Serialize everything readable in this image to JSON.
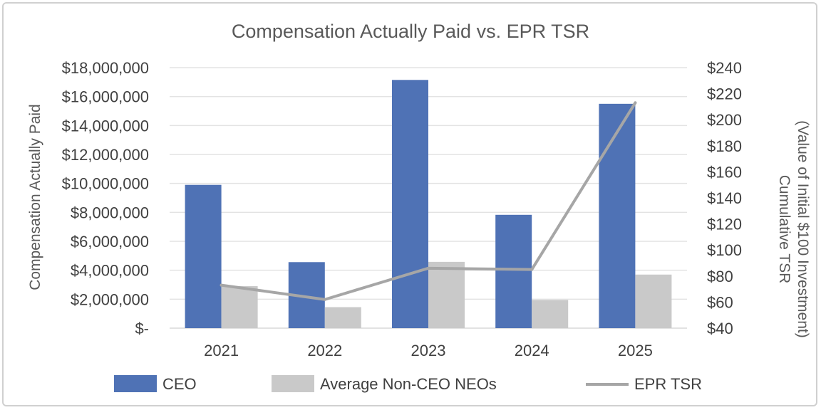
{
  "chart_data": {
    "type": "bar",
    "title": "Compensation Actually Paid vs. EPR TSR",
    "categories": [
      "2021",
      "2022",
      "2023",
      "2024",
      "2025"
    ],
    "series": [
      {
        "name": "CEO",
        "type": "bar",
        "axis": "left",
        "color": "#4f72b5",
        "values": [
          9900000,
          4560000,
          17150000,
          7830000,
          15500000
        ]
      },
      {
        "name": "Average Non-CEO NEOs",
        "type": "bar",
        "axis": "left",
        "color": "#c9c9c9",
        "values": [
          2900000,
          1450000,
          4580000,
          1950000,
          3700000
        ]
      },
      {
        "name": "EPR TSR",
        "type": "line",
        "axis": "right",
        "color": "#a6a6a6",
        "values": [
          73,
          62,
          86,
          85,
          213
        ]
      }
    ],
    "ylabel": "Compensation Actually Paid",
    "y2label_lines": [
      "Cumulative TSR",
      "(Value of Initial $100 Investment)"
    ],
    "ylim": [
      0,
      18000000
    ],
    "y2lim": [
      40,
      240
    ],
    "yticks": [
      "$-",
      "$2,000,000",
      "$4,000,000",
      "$6,000,000",
      "$8,000,000",
      "$10,000,000",
      "$12,000,000",
      "$14,000,000",
      "$16,000,000",
      "$18,000,000"
    ],
    "y2ticks": [
      "$40",
      "$60",
      "$80",
      "$100",
      "$120",
      "$140",
      "$160",
      "$180",
      "$200",
      "$220",
      "$240"
    ],
    "grid": true,
    "legend_position": "bottom"
  }
}
